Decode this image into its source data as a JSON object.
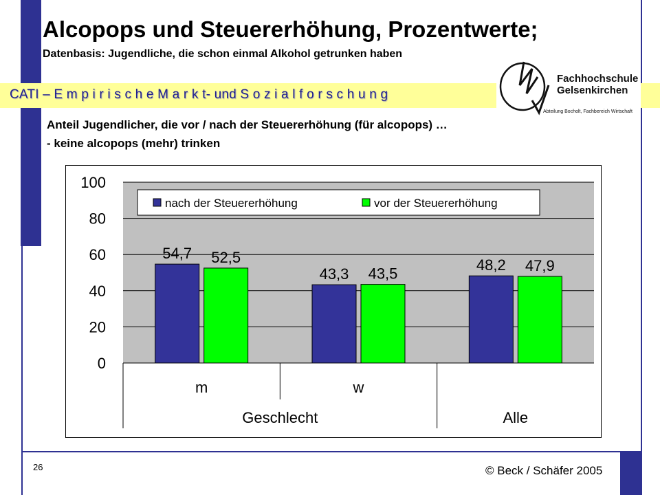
{
  "slide": {
    "title": "Alcopops und Steuererhöhung, Prozentwerte;",
    "subtitle": "Datenbasis: Jugendliche, die schon einmal Alkohol getrunken haben",
    "band_text": "CATI – E m p i r i s c h e  M a r k t- und S o z i a l f o r s c h u n g",
    "description_line1": "Anteil Jugendlicher, die vor / nach der Steuererhöhung (für alcopops) …",
    "description_line2": "- keine alcopops (mehr) trinken",
    "page_number": "26",
    "copyright": "© Beck / Schäfer 2005"
  },
  "logo": {
    "line1": "Fachhochschule",
    "line2": "Gelsenkirchen",
    "line3": "Abteilung Bocholt, Fachbereich Wirtschaft"
  },
  "colors": {
    "frame_blue": "#2e3192",
    "band_yellow": "#ffff99",
    "series_nach": "#333399",
    "series_vor": "#00ff00",
    "plot_bg": "#c0c0c0"
  },
  "chart_data": {
    "type": "bar",
    "categories": [
      "m",
      "w",
      "Alle"
    ],
    "group_labels": [
      {
        "label": "Geschlecht",
        "categories": [
          "m",
          "w"
        ]
      },
      {
        "label": "Alle",
        "categories": [
          "Alle"
        ]
      }
    ],
    "series": [
      {
        "name": "nach der Steuererhöhung",
        "color": "#333399",
        "values": [
          54.7,
          43.3,
          48.2
        ],
        "labels": [
          "54,7",
          "43,3",
          "48,2"
        ]
      },
      {
        "name": "vor der Steuererhöhung",
        "color": "#00ff00",
        "values": [
          52.5,
          43.5,
          47.9
        ],
        "labels": [
          "52,5",
          "43,5",
          "47,9"
        ]
      }
    ],
    "ylim": [
      0,
      100
    ],
    "yticks": [
      "0",
      "20",
      "40",
      "60",
      "80",
      "100"
    ],
    "grid": true,
    "legend": "top"
  }
}
